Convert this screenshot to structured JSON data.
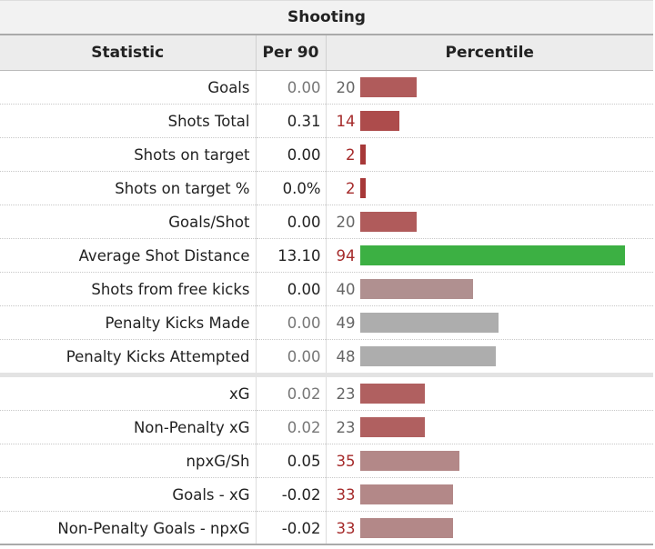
{
  "caption": "Shooting",
  "headers": {
    "statistic": "Statistic",
    "per90": "Per 90",
    "percentile": "Percentile"
  },
  "rows": [
    {
      "label": "Goals",
      "per90": "0.00",
      "percentile": "20",
      "pct_value": 20,
      "bar_color": "#b05b5b",
      "num_tone": "grey",
      "per90_tone": "dim"
    },
    {
      "label": "Shots Total",
      "per90": "0.31",
      "percentile": "14",
      "pct_value": 14,
      "bar_color": "#ad4c4c",
      "num_tone": "red",
      "per90_tone": "normal"
    },
    {
      "label": "Shots on target",
      "per90": "0.00",
      "percentile": "2",
      "pct_value": 2,
      "bar_color": "#a73838",
      "num_tone": "red",
      "per90_tone": "normal"
    },
    {
      "label": "Shots on target %",
      "per90": "0.0%",
      "percentile": "2",
      "pct_value": 2,
      "bar_color": "#a73838",
      "num_tone": "red",
      "per90_tone": "normal"
    },
    {
      "label": "Goals/Shot",
      "per90": "0.00",
      "percentile": "20",
      "pct_value": 20,
      "bar_color": "#b05b5b",
      "num_tone": "grey",
      "per90_tone": "normal"
    },
    {
      "label": "Average Shot Distance",
      "per90": "13.10",
      "percentile": "94",
      "pct_value": 94,
      "bar_color": "#3cb043",
      "num_tone": "red",
      "per90_tone": "normal"
    },
    {
      "label": "Shots from free kicks",
      "per90": "0.00",
      "percentile": "40",
      "pct_value": 40,
      "bar_color": "#b09090",
      "num_tone": "grey",
      "per90_tone": "normal"
    },
    {
      "label": "Penalty Kicks Made",
      "per90": "0.00",
      "percentile": "49",
      "pct_value": 49,
      "bar_color": "#adadad",
      "num_tone": "grey",
      "per90_tone": "dim"
    },
    {
      "label": "Penalty Kicks Attempted",
      "per90": "0.00",
      "percentile": "48",
      "pct_value": 48,
      "bar_color": "#adadad",
      "num_tone": "grey",
      "per90_tone": "dim"
    },
    {
      "label": "xG",
      "per90": "0.02",
      "percentile": "23",
      "pct_value": 23,
      "bar_color": "#b06060",
      "num_tone": "grey",
      "per90_tone": "dim",
      "gap_before": true
    },
    {
      "label": "Non-Penalty xG",
      "per90": "0.02",
      "percentile": "23",
      "pct_value": 23,
      "bar_color": "#b06060",
      "num_tone": "grey",
      "per90_tone": "dim"
    },
    {
      "label": "npxG/Sh",
      "per90": "0.05",
      "percentile": "35",
      "pct_value": 35,
      "bar_color": "#b38888",
      "num_tone": "red",
      "per90_tone": "normal"
    },
    {
      "label": "Goals - xG",
      "per90": "-0.02",
      "percentile": "33",
      "pct_value": 33,
      "bar_color": "#b38888",
      "num_tone": "red",
      "per90_tone": "normal"
    },
    {
      "label": "Non-Penalty Goals - npxG",
      "per90": "-0.02",
      "percentile": "33",
      "pct_value": 33,
      "bar_color": "#b38888",
      "num_tone": "red",
      "per90_tone": "normal"
    }
  ]
}
